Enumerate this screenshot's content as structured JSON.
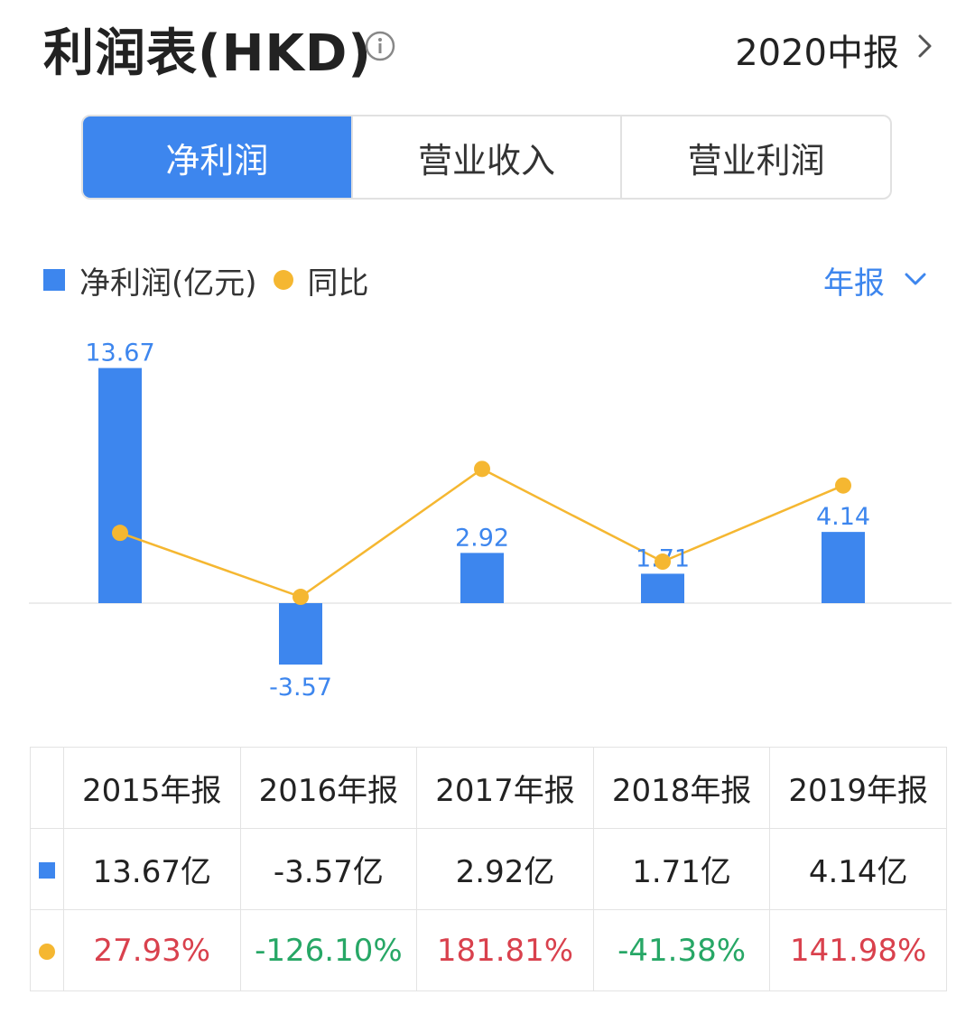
{
  "header": {
    "title": "利润表(HKD)",
    "period_label": "2020中报"
  },
  "tabs": [
    {
      "label": "净利润",
      "active": true
    },
    {
      "label": "营业收入",
      "active": false
    },
    {
      "label": "营业利润",
      "active": false
    }
  ],
  "legend": {
    "bar_label": "净利润(亿元)",
    "line_label": "同比",
    "frequency": "年报"
  },
  "colors": {
    "accent": "#3d86ee",
    "line": "#f5b731",
    "positive": "#d9414d",
    "negative": "#27a766"
  },
  "chart_data": {
    "type": "bar",
    "categories": [
      "2015年报",
      "2016年报",
      "2017年报",
      "2018年报",
      "2019年报"
    ],
    "series": [
      {
        "name": "净利润(亿元)",
        "type": "bar",
        "values": [
          13.67,
          -3.57,
          2.92,
          1.71,
          4.14
        ],
        "data_labels": [
          "13.67",
          "-3.57",
          "2.92",
          "1.71",
          "4.14"
        ]
      },
      {
        "name": "同比",
        "type": "line",
        "values": [
          27.93,
          -126.1,
          181.81,
          -41.38,
          141.98
        ],
        "unit": "%"
      }
    ],
    "grid": false,
    "legend_position": "top-left"
  },
  "table": {
    "years": [
      "2015年报",
      "2016年报",
      "2017年报",
      "2018年报",
      "2019年报"
    ],
    "net_profit": [
      "13.67亿",
      "-3.57亿",
      "2.92亿",
      "1.71亿",
      "4.14亿"
    ],
    "yoy": [
      "27.93%",
      "-126.10%",
      "181.81%",
      "-41.38%",
      "141.98%"
    ]
  }
}
